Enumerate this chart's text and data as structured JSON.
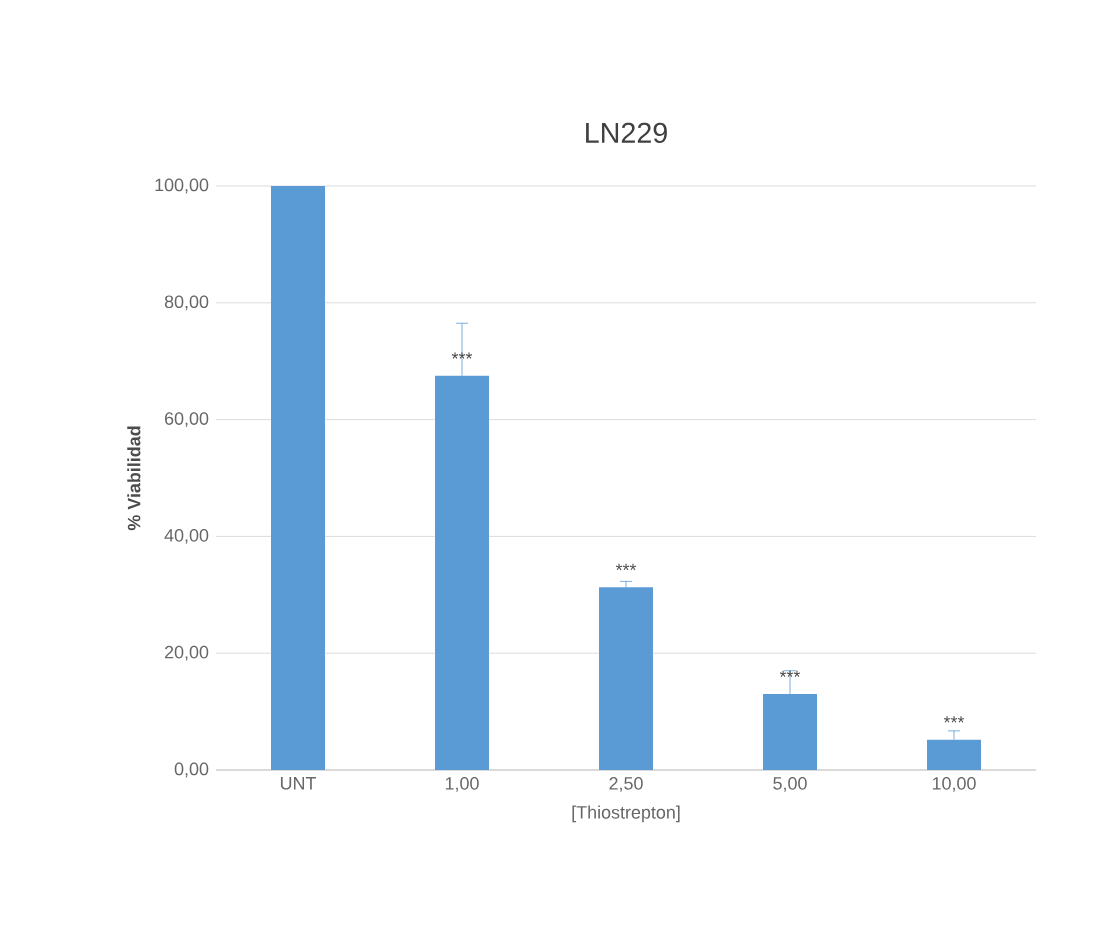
{
  "chart_data": {
    "type": "bar",
    "title": "LN229",
    "xlabel": "[Thiostrepton]",
    "ylabel": "% Viabilidad",
    "categories": [
      "UNT",
      "1,00",
      "2,50",
      "5,00",
      "10,00"
    ],
    "values": [
      100,
      67.5,
      31.3,
      13.0,
      5.2
    ],
    "errors": [
      null,
      9,
      1,
      4,
      1.5
    ],
    "color": "#5b9bd5",
    "ylim": [
      0,
      100
    ],
    "yticks": [
      {
        "value": 0,
        "label": "0,00"
      },
      {
        "value": 20,
        "label": "20,00"
      },
      {
        "value": 40,
        "label": "40,00"
      },
      {
        "value": 60,
        "label": "60,00"
      },
      {
        "value": 80,
        "label": "80,00"
      },
      {
        "value": 100,
        "label": "100,00"
      }
    ],
    "grid": "y",
    "annotations": [
      {
        "text": "***",
        "x": "1,00",
        "y": 67.5
      },
      {
        "text": "***",
        "x": "2,50",
        "y": 31.3
      },
      {
        "text": "***",
        "x": "5,00",
        "y": 13.0
      },
      {
        "text": "***",
        "x": "10,00",
        "y": 5.2
      }
    ]
  }
}
